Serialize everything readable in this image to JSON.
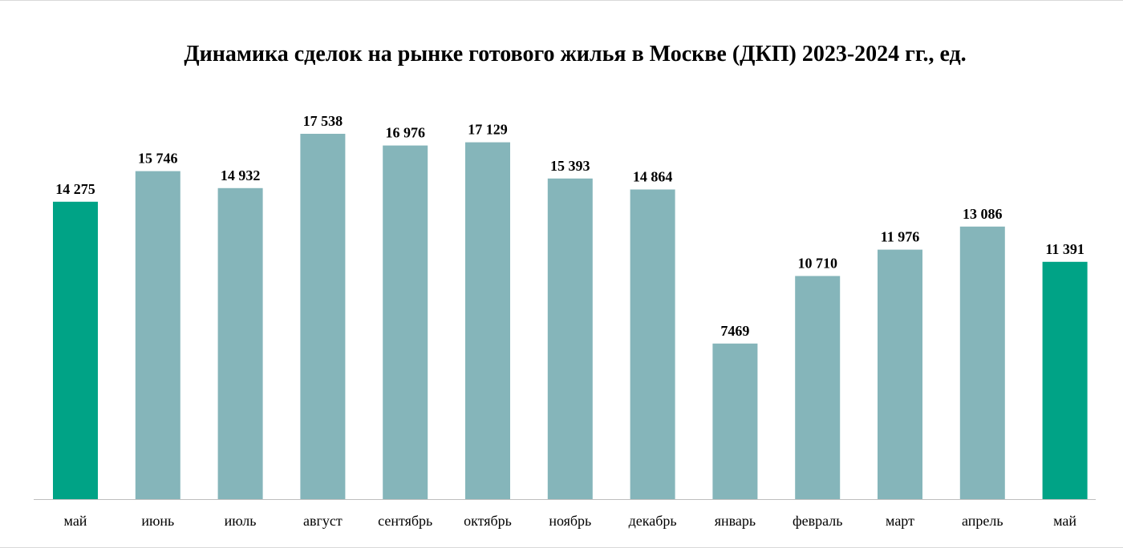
{
  "chart_data": {
    "type": "bar",
    "title": "Динамика сделок на рынке готового жилья в Москве (ДКП) 2023-2024 гг., ед.",
    "categories": [
      "май",
      "июнь",
      "июль",
      "август",
      "сентябрь",
      "октябрь",
      "ноябрь",
      "декабрь",
      "январь",
      "февраль",
      "март",
      "апрель",
      "май"
    ],
    "values": [
      14275,
      15746,
      14932,
      17538,
      16976,
      17129,
      15393,
      14864,
      7469,
      10710,
      11976,
      13086,
      11391
    ],
    "value_labels": [
      "14 275",
      "15 746",
      "14 932",
      "17 538",
      "16 976",
      "17 129",
      "15 393",
      "14 864",
      "7469",
      "10 710",
      "11 976",
      "13 086",
      "11 391"
    ],
    "highlight_indices": [
      0,
      12
    ],
    "colors": {
      "bar": "#85b5ba",
      "highlight": "#00a386",
      "axis": "#bfbfbf"
    },
    "ylim": [
      0,
      18000
    ],
    "grid": false,
    "legend": "none"
  }
}
